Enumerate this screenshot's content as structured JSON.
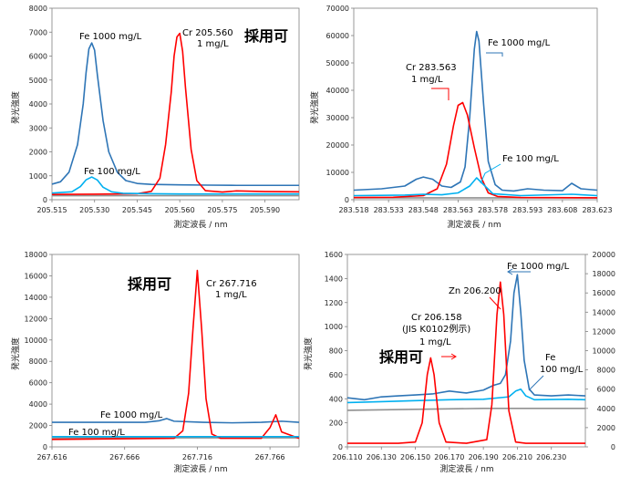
{
  "chart_data": [
    {
      "type": "line",
      "xlabel": "測定波長 / nm",
      "ylabel": "発光強度",
      "xlim": [
        205.515,
        205.602
      ],
      "ylim": [
        0,
        8000
      ],
      "xticks": [
        205.515,
        205.53,
        205.545,
        205.56,
        205.575,
        205.59
      ],
      "xtick_labels": [
        "205.515",
        "205.530",
        "205.545",
        "205.560",
        "205.575",
        "205.590"
      ],
      "yticks": [
        0,
        1000,
        2000,
        3000,
        4000,
        5000,
        6000,
        7000,
        8000
      ],
      "ytick_labels": [
        "0",
        "1000",
        "2000",
        "3000",
        "4000",
        "5000",
        "6000",
        "7000",
        "8000"
      ],
      "series": [
        {
          "name": "Fe 1000 mg/L",
          "color": "#2e75b6",
          "x": [
            205.515,
            205.518,
            205.521,
            205.524,
            205.526,
            205.527,
            205.528,
            205.529,
            205.53,
            205.531,
            205.533,
            205.535,
            205.538,
            205.541,
            205.545,
            205.55,
            205.56,
            205.57,
            205.58,
            205.59,
            205.602
          ],
          "y": [
            650,
            750,
            1150,
            2300,
            4000,
            5300,
            6300,
            6550,
            6250,
            5200,
            3300,
            2000,
            1150,
            800,
            680,
            640,
            620,
            610,
            600,
            600,
            600
          ]
        },
        {
          "name": "Cr 205.560 1 mg/L",
          "color": "#ff0000",
          "x": [
            205.515,
            205.53,
            205.545,
            205.55,
            205.553,
            205.555,
            205.557,
            205.558,
            205.559,
            205.56,
            205.561,
            205.562,
            205.564,
            205.566,
            205.569,
            205.575,
            205.58,
            205.59,
            205.602
          ],
          "y": [
            220,
            230,
            250,
            350,
            900,
            2300,
            4500,
            6000,
            6800,
            6950,
            6200,
            4700,
            2100,
            800,
            380,
            320,
            370,
            340,
            330
          ]
        },
        {
          "name": "Fe 100 mg/L",
          "color": "#00b0f0",
          "x": [
            205.515,
            205.522,
            205.525,
            205.527,
            205.529,
            205.531,
            205.533,
            205.536,
            205.54,
            205.55,
            205.56,
            205.575,
            205.59,
            205.602
          ],
          "y": [
            280,
            330,
            550,
            830,
            950,
            820,
            520,
            330,
            270,
            250,
            240,
            240,
            240,
            240
          ]
        },
        {
          "name": "",
          "color": "#909090",
          "x": [
            205.515,
            205.56,
            205.602
          ],
          "y": [
            170,
            170,
            170
          ]
        }
      ],
      "annotations": [
        {
          "text": "Fe 1000 mg/L"
        },
        {
          "text": "Cr 205.560"
        },
        {
          "text": "1 mg/L"
        },
        {
          "text": "Fe 100 mg/L"
        },
        {
          "text": "採用可"
        }
      ]
    },
    {
      "type": "line",
      "xlabel": "測定波長 / nm",
      "ylabel": "発光強度",
      "xlim": [
        283.518,
        283.623
      ],
      "ylim": [
        0,
        70000
      ],
      "xticks": [
        283.518,
        283.533,
        283.548,
        283.563,
        283.578,
        283.593,
        283.608,
        283.623
      ],
      "xtick_labels": [
        "283.518",
        "283.533",
        "283.548",
        "283.563",
        "283.578",
        "283.593",
        "283.608",
        "283.623"
      ],
      "yticks": [
        0,
        10000,
        20000,
        30000,
        40000,
        50000,
        60000,
        70000
      ],
      "ytick_labels": [
        "0",
        "10000",
        "20000",
        "30000",
        "40000",
        "50000",
        "60000",
        "70000"
      ],
      "series": [
        {
          "name": "Fe 1000 mg/L",
          "color": "#2e75b6",
          "x": [
            283.518,
            283.53,
            283.54,
            283.545,
            283.548,
            283.552,
            283.556,
            283.56,
            283.564,
            283.566,
            283.568,
            283.57,
            283.571,
            283.572,
            283.574,
            283.576,
            283.579,
            283.582,
            283.587,
            283.593,
            283.6,
            283.608,
            283.612,
            283.616,
            283.623
          ],
          "y": [
            3500,
            4000,
            5000,
            7500,
            8300,
            7500,
            5000,
            4500,
            6500,
            12000,
            30000,
            55000,
            61500,
            58000,
            35000,
            14000,
            5500,
            3500,
            3200,
            4000,
            3500,
            3300,
            6000,
            4000,
            3500
          ]
        },
        {
          "name": "Cr 283.563 1 mg/L",
          "color": "#ff0000",
          "x": [
            283.518,
            283.535,
            283.548,
            283.554,
            283.558,
            283.561,
            283.563,
            283.565,
            283.567,
            283.57,
            283.573,
            283.576,
            283.58,
            283.59,
            283.623
          ],
          "y": [
            800,
            900,
            1500,
            4000,
            13000,
            27000,
            34500,
            35500,
            31000,
            19000,
            8000,
            2500,
            1200,
            800,
            700
          ]
        },
        {
          "name": "Fe 100 mg/L",
          "color": "#00b0f0",
          "x": [
            283.518,
            283.54,
            283.548,
            283.556,
            283.563,
            283.568,
            283.571,
            283.574,
            283.578,
            283.59,
            283.612,
            283.623
          ],
          "y": [
            1500,
            1700,
            2000,
            1800,
            2500,
            5000,
            8000,
            5500,
            2200,
            1500,
            2000,
            1500
          ]
        },
        {
          "name": "",
          "color": "#909090",
          "x": [
            283.518,
            283.57,
            283.623
          ],
          "y": [
            700,
            700,
            700
          ]
        }
      ],
      "annotations": [
        {
          "text": "Fe 1000 mg/L"
        },
        {
          "text": "Cr 283.563"
        },
        {
          "text": "1 mg/L"
        },
        {
          "text": "Fe 100 mg/L"
        }
      ]
    },
    {
      "type": "line",
      "xlabel": "測定波長 / nm",
      "ylabel": "発光強度",
      "xlim": [
        267.616,
        267.786
      ],
      "ylim": [
        0,
        18000
      ],
      "xticks": [
        267.616,
        267.666,
        267.716,
        267.766
      ],
      "xtick_labels": [
        "267.616",
        "267.666",
        "267.716",
        "267.766"
      ],
      "yticks": [
        0,
        2000,
        4000,
        6000,
        8000,
        10000,
        12000,
        14000,
        16000,
        18000
      ],
      "ytick_labels": [
        "0",
        "2000",
        "4000",
        "6000",
        "8000",
        "10000",
        "12000",
        "14000",
        "16000",
        "18000"
      ],
      "series": [
        {
          "name": "Fe 1000 mg/L",
          "color": "#2e75b6",
          "x": [
            267.616,
            267.64,
            267.66,
            267.68,
            267.69,
            267.695,
            267.7,
            267.72,
            267.74,
            267.76,
            267.774,
            267.786
          ],
          "y": [
            2300,
            2300,
            2300,
            2300,
            2450,
            2650,
            2400,
            2300,
            2250,
            2300,
            2400,
            2300
          ]
        },
        {
          "name": "Cr 267.716 1 mg/L",
          "color": "#ff0000",
          "x": [
            267.616,
            267.66,
            267.7,
            267.706,
            267.71,
            267.713,
            267.716,
            267.719,
            267.722,
            267.726,
            267.732,
            267.76,
            267.766,
            267.77,
            267.774,
            267.786
          ],
          "y": [
            700,
            750,
            800,
            1500,
            5000,
            11000,
            16500,
            11000,
            4500,
            1200,
            800,
            800,
            1800,
            3000,
            1400,
            800
          ]
        },
        {
          "name": "Fe 100 mg/L",
          "color": "#00b0f0",
          "x": [
            267.616,
            267.7,
            267.786
          ],
          "y": [
            950,
            950,
            950
          ]
        },
        {
          "name": "",
          "color": "#909090",
          "x": [
            267.616,
            267.7,
            267.786
          ],
          "y": [
            850,
            850,
            850
          ]
        }
      ],
      "annotations": [
        {
          "text": "Cr 267.716"
        },
        {
          "text": "1 mg/L"
        },
        {
          "text": "Fe 1000 mg/L"
        },
        {
          "text": "Fe 100 mg/L"
        },
        {
          "text": "採用可"
        }
      ]
    },
    {
      "type": "line",
      "xlabel": "測定波長 / nm",
      "ylabel": "発光強度",
      "xlim": [
        206.11,
        206.25
      ],
      "ylim": [
        0,
        1600
      ],
      "y2lim": [
        0,
        20000
      ],
      "xticks": [
        206.11,
        206.13,
        206.15,
        206.17,
        206.19,
        206.21,
        206.23
      ],
      "xtick_labels": [
        "206.110",
        "206.130",
        "206.150",
        "206.170",
        "206.190",
        "206.210",
        "206.230"
      ],
      "yticks": [
        0,
        200,
        400,
        600,
        800,
        1000,
        1200,
        1400,
        1600
      ],
      "ytick_labels": [
        "0",
        "200",
        "400",
        "600",
        "800",
        "1000",
        "1200",
        "1400",
        "1600"
      ],
      "y2ticks": [
        0,
        2000,
        4000,
        6000,
        8000,
        10000,
        12000,
        14000,
        16000,
        18000,
        20000
      ],
      "y2tick_labels": [
        "0",
        "2000",
        "4000",
        "6000",
        "8000",
        "10000",
        "12000",
        "14000",
        "16000",
        "18000",
        "20000"
      ],
      "series": [
        {
          "name": "Fe 1000 mg/L",
          "color": "#2e75b6",
          "axis": "right",
          "x": [
            206.11,
            206.12,
            206.13,
            206.14,
            206.15,
            206.16,
            206.17,
            206.18,
            206.19,
            206.196,
            206.2,
            206.203,
            206.206,
            206.208,
            206.21,
            206.212,
            206.214,
            206.217,
            206.22,
            206.23,
            206.24,
            206.25
          ],
          "y": [
            5100,
            4900,
            5200,
            5300,
            5400,
            5500,
            5800,
            5600,
            5900,
            6400,
            6600,
            7500,
            11000,
            16000,
            17900,
            14000,
            9000,
            6000,
            5400,
            5300,
            5400,
            5300
          ]
        },
        {
          "name": "Fe 100 mg/L",
          "color": "#00b0f0",
          "axis": "right",
          "x": [
            206.11,
            206.13,
            206.15,
            206.17,
            206.19,
            206.205,
            206.209,
            206.212,
            206.215,
            206.22,
            206.24,
            206.25
          ],
          "y": [
            4600,
            4700,
            4800,
            4900,
            4950,
            5200,
            5800,
            6000,
            5300,
            4900,
            4950,
            4900
          ]
        },
        {
          "name": "",
          "color": "#909090",
          "axis": "right",
          "x": [
            206.11,
            206.15,
            206.19,
            206.25
          ],
          "y": [
            3800,
            3900,
            4000,
            4000
          ]
        },
        {
          "name": "Cr 206.158 (JIS K0102例示) 1 mg/L / Zn 206.200",
          "color": "#ff0000",
          "axis": "left",
          "x": [
            206.11,
            206.14,
            206.15,
            206.154,
            206.157,
            206.159,
            206.161,
            206.164,
            206.168,
            206.18,
            206.192,
            206.195,
            206.198,
            206.2,
            206.202,
            206.205,
            206.209,
            206.215,
            206.25
          ],
          "y": [
            30,
            30,
            40,
            200,
            600,
            740,
            600,
            200,
            40,
            30,
            60,
            350,
            1100,
            1370,
            1100,
            300,
            40,
            30,
            30
          ]
        }
      ],
      "annotations": [
        {
          "text": "Fe 1000 mg/L"
        },
        {
          "text": "Zn 206.200"
        },
        {
          "text": "Cr 206.158"
        },
        {
          "text": "(JIS K0102例示)"
        },
        {
          "text": "1 mg/L"
        },
        {
          "text": "採用可"
        },
        {
          "text": "Fe"
        },
        {
          "text": "100 mg/L"
        }
      ]
    }
  ]
}
